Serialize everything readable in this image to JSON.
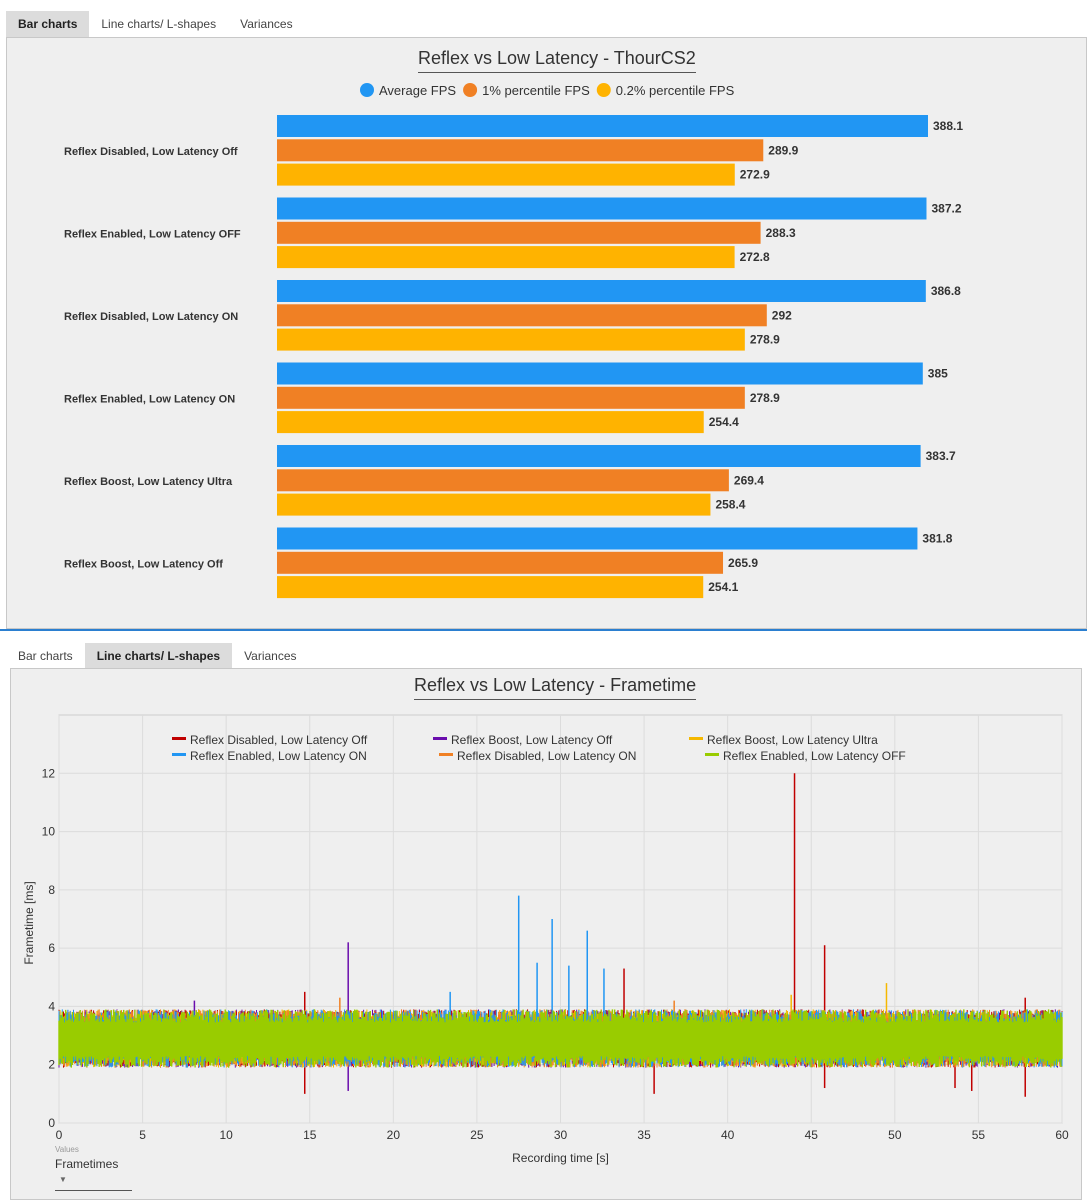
{
  "top_tabs": [
    "Bar charts",
    "Line charts/ L-shapes",
    "Variances"
  ],
  "top_active_tab": 0,
  "bottom_tabs": [
    "Bar charts",
    "Line charts/ L-shapes",
    "Variances"
  ],
  "bottom_active_tab": 1,
  "values_dropdown": {
    "label": "Values",
    "value": "Frametimes"
  },
  "chart_data": [
    {
      "type": "bar",
      "orientation": "horizontal",
      "title": "Reflex vs Low Latency - ThourCS2",
      "legend_placement": "top-center",
      "categories": [
        "Reflex Disabled, Low Latency Off",
        "Reflex Enabled, Low Latency OFF",
        "Reflex Disabled, Low Latency ON",
        "Reflex Enabled, Low Latency ON",
        "Reflex Boost, Low Latency Ultra",
        "Reflex Boost, Low Latency Off"
      ],
      "series": [
        {
          "name": "Average FPS",
          "color": "#2196f3",
          "values": [
            388.1,
            387.2,
            386.8,
            385,
            383.7,
            381.8
          ]
        },
        {
          "name": "1% percentile FPS",
          "color": "#f08024",
          "values": [
            289.9,
            288.3,
            292,
            278.9,
            269.4,
            265.9
          ]
        },
        {
          "name": "0.2% percentile FPS",
          "color": "#ffb300",
          "values": [
            272.9,
            272.8,
            278.9,
            254.4,
            258.4,
            254.1
          ]
        }
      ],
      "xlim": [
        0,
        388.1
      ]
    },
    {
      "type": "line",
      "title": "Reflex vs Low Latency - Frametime",
      "xlabel": "Recording time [s]",
      "ylabel": "Frametime [ms]",
      "xlim": [
        0,
        60
      ],
      "ylim": [
        0,
        14
      ],
      "xticks": [
        0,
        5,
        10,
        15,
        20,
        25,
        30,
        35,
        40,
        45,
        50,
        55,
        60
      ],
      "yticks": [
        0,
        2,
        4,
        6,
        8,
        10,
        12
      ],
      "grid": true,
      "legend_placement": "top",
      "typical_range_ms": [
        1.9,
        3.9
      ],
      "series": [
        {
          "name": "Reflex Disabled, Low Latency Off",
          "color": "#c00000",
          "spikes": [
            [
              44.0,
              12.0
            ],
            [
              45.8,
              6.1
            ],
            [
              33.8,
              5.3
            ],
            [
              14.7,
              4.5
            ],
            [
              14.7,
              1.0
            ],
            [
              35.6,
              1.0
            ],
            [
              45.8,
              1.2
            ],
            [
              53.6,
              1.2
            ],
            [
              54.6,
              1.1
            ],
            [
              57.8,
              0.9
            ],
            [
              57.8,
              4.3
            ]
          ]
        },
        {
          "name": "Reflex Enabled, Low Latency ON",
          "color": "#2196f3",
          "spikes": [
            [
              27.5,
              7.8
            ],
            [
              29.5,
              7.0
            ],
            [
              31.6,
              6.6
            ],
            [
              28.6,
              5.5
            ],
            [
              30.5,
              5.4
            ],
            [
              32.6,
              5.3
            ],
            [
              23.4,
              4.5
            ]
          ]
        },
        {
          "name": "Reflex Boost, Low Latency Off",
          "color": "#6a0dad",
          "spikes": [
            [
              17.3,
              6.2
            ],
            [
              17.3,
              1.1
            ],
            [
              8.1,
              4.2
            ]
          ]
        },
        {
          "name": "Reflex Disabled, Low Latency ON",
          "color": "#f08024",
          "spikes": [
            [
              16.8,
              4.3
            ],
            [
              36.8,
              4.2
            ]
          ]
        },
        {
          "name": "Reflex Boost, Low Latency Ultra",
          "color": "#f5b800",
          "spikes": [
            [
              49.5,
              4.8
            ],
            [
              43.8,
              4.4
            ]
          ]
        },
        {
          "name": "Reflex Enabled, Low Latency OFF",
          "color": "#99cc00",
          "spikes": []
        }
      ]
    }
  ]
}
